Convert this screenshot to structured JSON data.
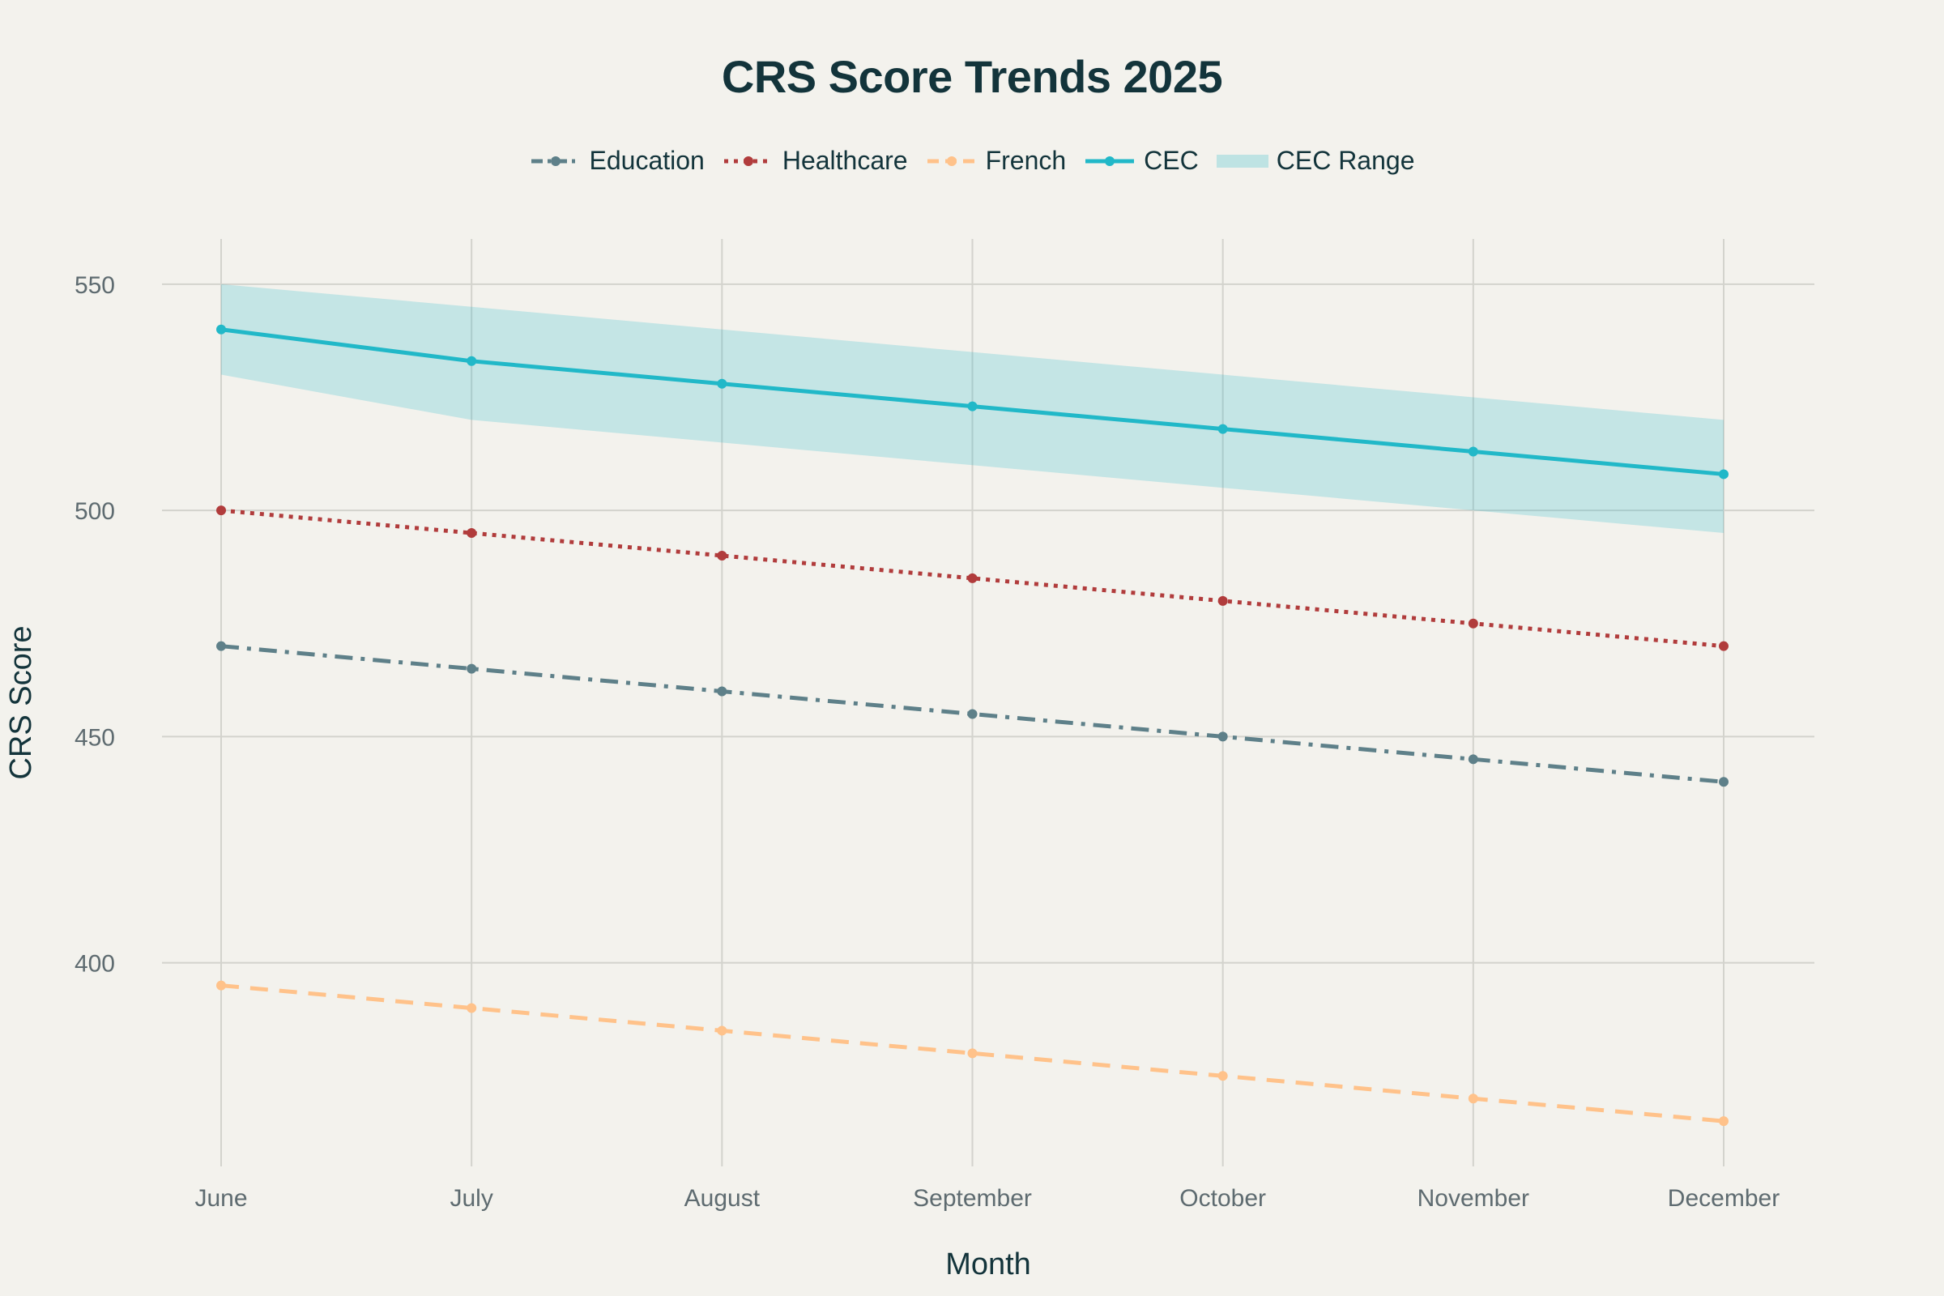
{
  "title": "CRS Score Trends 2025",
  "chart_data": {
    "type": "line",
    "title": "CRS Score Trends 2025",
    "xlabel": "Month",
    "ylabel": "CRS Score",
    "categories": [
      "June",
      "July",
      "August",
      "September",
      "October",
      "November",
      "December"
    ],
    "ylim": [
      355,
      560
    ],
    "yticks": [
      400,
      450,
      500,
      550
    ],
    "grid": true,
    "legend_position": "top-center",
    "series": [
      {
        "name": "Education",
        "values": [
          470,
          465,
          460,
          455,
          450,
          445,
          440
        ],
        "color": "#5e8089",
        "style": "dashdot"
      },
      {
        "name": "Healthcare",
        "values": [
          500,
          495,
          490,
          485,
          480,
          475,
          470
        ],
        "color": "#b13c3c",
        "style": "dot"
      },
      {
        "name": "French",
        "values": [
          395,
          390,
          385,
          380,
          375,
          370,
          365
        ],
        "color": "#ffc28a",
        "style": "dash"
      },
      {
        "name": "CEC",
        "values": [
          540,
          533,
          528,
          523,
          518,
          513,
          508
        ],
        "color": "#21b8c8",
        "style": "solid"
      }
    ],
    "band": {
      "name": "CEC Range",
      "upper": [
        550,
        545,
        540,
        535,
        530,
        525,
        520
      ],
      "lower": [
        530,
        520,
        515,
        510,
        505,
        500,
        495
      ],
      "color": "#21b8c8"
    }
  }
}
